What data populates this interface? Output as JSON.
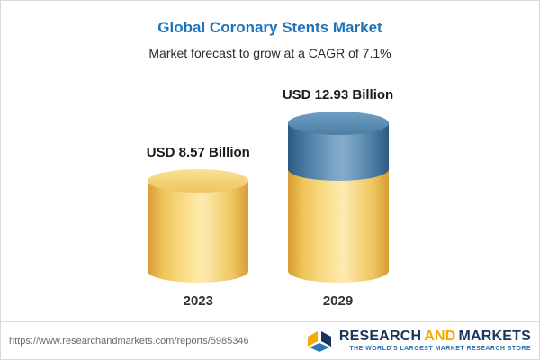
{
  "header": {
    "title": "Global Coronary Stents Market",
    "subtitle": "Market forecast to grow at a CAGR of 7.1%"
  },
  "chart_data": {
    "type": "bar",
    "title": "Global Coronary Stents Market",
    "subtitle": "Market forecast to grow at a CAGR of 7.1%",
    "categories": [
      "2023",
      "2029"
    ],
    "values": [
      8.57,
      12.93
    ],
    "value_labels": [
      "USD 8.57 Billion",
      "USD 12.93 Billion"
    ],
    "unit": "USD Billion",
    "cagr_text": "7.1%",
    "ylim": [
      0,
      12.93
    ],
    "legend": "none",
    "grid": "off",
    "colors": {
      "bar_base": "#F5CE65",
      "bar_growth": "#557FA3"
    }
  },
  "footer": {
    "url": "https://www.researchandmarkets.com/reports/5985346",
    "logo_text_research": "RESEARCH",
    "logo_text_and": "AND",
    "logo_text_markets": "MARKETS",
    "logo_tagline": "THE WORLD'S LARGEST MARKET RESEARCH STORE"
  }
}
